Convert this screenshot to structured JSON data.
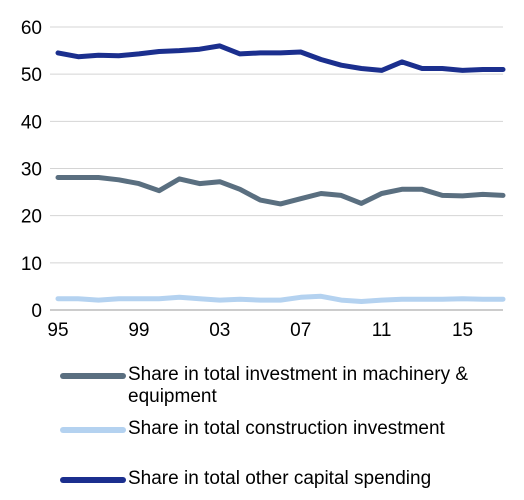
{
  "chart_data": {
    "type": "line",
    "x": [
      1995,
      1996,
      1997,
      1998,
      1999,
      2000,
      2001,
      2002,
      2003,
      2004,
      2005,
      2006,
      2007,
      2008,
      2009,
      2010,
      2011,
      2012,
      2013,
      2014,
      2015,
      2016,
      2017
    ],
    "x_tick_labels": [
      "95",
      "99",
      "03",
      "07",
      "11",
      "15"
    ],
    "x_tick_values": [
      1995,
      1999,
      2003,
      2007,
      2011,
      2015
    ],
    "y_ticks": [
      "0",
      "10",
      "20",
      "30",
      "40",
      "50",
      "60"
    ],
    "ylim": [
      0,
      60
    ],
    "xlim": [
      1995,
      2017
    ],
    "grid": "horizontal",
    "legend_position": "bottom",
    "series": [
      {
        "name": "Share in total investment in machinery & equipment",
        "color": "#5a6f80",
        "values": [
          28.1,
          28.1,
          28.1,
          27.6,
          26.8,
          25.3,
          27.8,
          26.8,
          27.2,
          25.6,
          23.3,
          22.5,
          23.6,
          24.7,
          24.3,
          22.6,
          24.7,
          25.6,
          25.6,
          24.3,
          24.2,
          24.5,
          24.3
        ]
      },
      {
        "name": "Share in total construction investment",
        "color": "#b4d2f0",
        "values": [
          2.4,
          2.4,
          2.1,
          2.4,
          2.4,
          2.4,
          2.7,
          2.4,
          2.1,
          2.3,
          2.1,
          2.1,
          2.7,
          2.9,
          2.1,
          1.8,
          2.1,
          2.3,
          2.3,
          2.3,
          2.4,
          2.3,
          2.3
        ]
      },
      {
        "name": "Share in total other capital spending",
        "color": "#1b2f8e",
        "values": [
          54.5,
          53.7,
          54.0,
          53.9,
          54.3,
          54.8,
          55.0,
          55.3,
          56.0,
          54.3,
          54.5,
          54.5,
          54.7,
          53.1,
          51.9,
          51.2,
          50.8,
          52.6,
          51.2,
          51.2,
          50.8,
          51.0,
          51.0
        ]
      }
    ]
  }
}
